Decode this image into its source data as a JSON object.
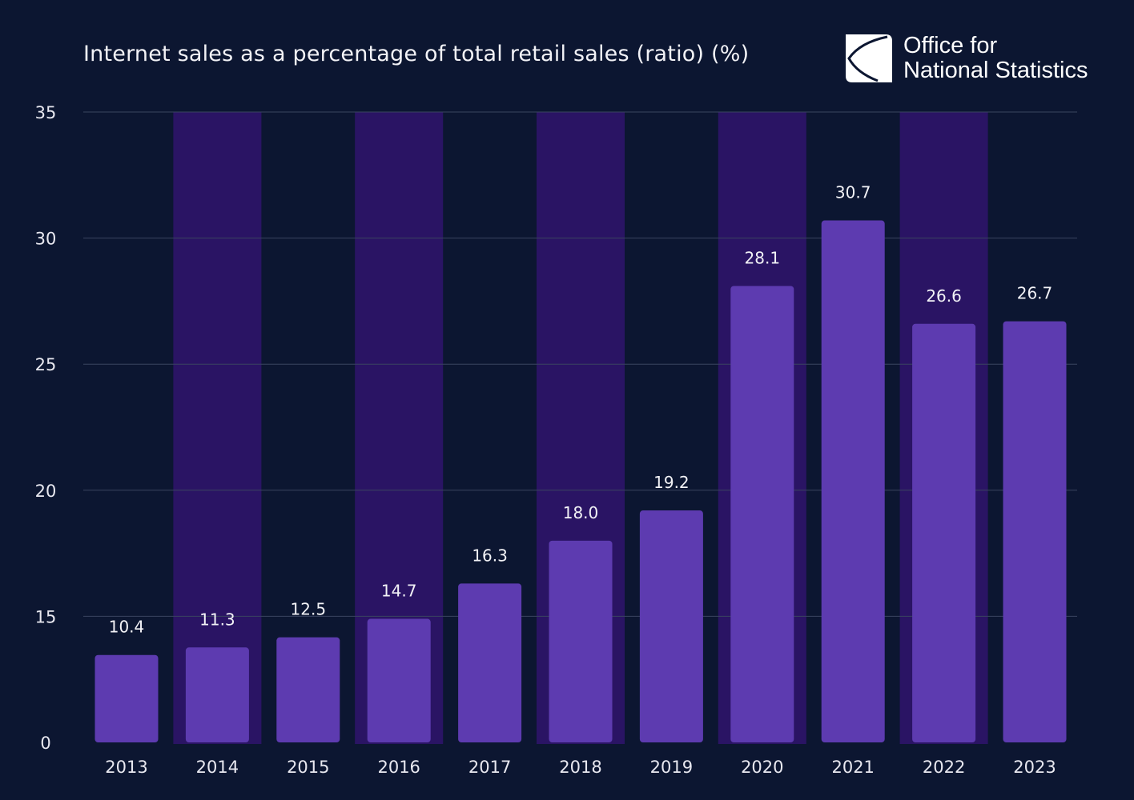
{
  "chart_data": {
    "type": "bar",
    "title": "Internet sales as a percentage of total retail sales (ratio) (%)",
    "categories": [
      "2013",
      "2014",
      "2015",
      "2016",
      "2017",
      "2018",
      "2019",
      "2020",
      "2021",
      "2022",
      "2023"
    ],
    "values": [
      10.4,
      11.3,
      12.5,
      14.7,
      16.3,
      18.0,
      19.2,
      28.1,
      30.7,
      26.6,
      26.7
    ],
    "data_labels": [
      "10.4",
      "11.3",
      "12.5",
      "14.7",
      "16.3",
      "18.0",
      "19.2",
      "28.1",
      "30.7",
      "26.6",
      "26.7"
    ],
    "yticks": [
      0,
      15,
      20,
      25,
      30,
      35
    ],
    "ylim": [
      0,
      35
    ],
    "grid": true,
    "alternating_bands": true,
    "colors": {
      "background": "#0c1631",
      "band": "#2a1464",
      "bar": "#5d3bb0",
      "grid": "#3a4560"
    }
  },
  "logo": {
    "line1": "Office for",
    "line2": "National Statistics"
  }
}
